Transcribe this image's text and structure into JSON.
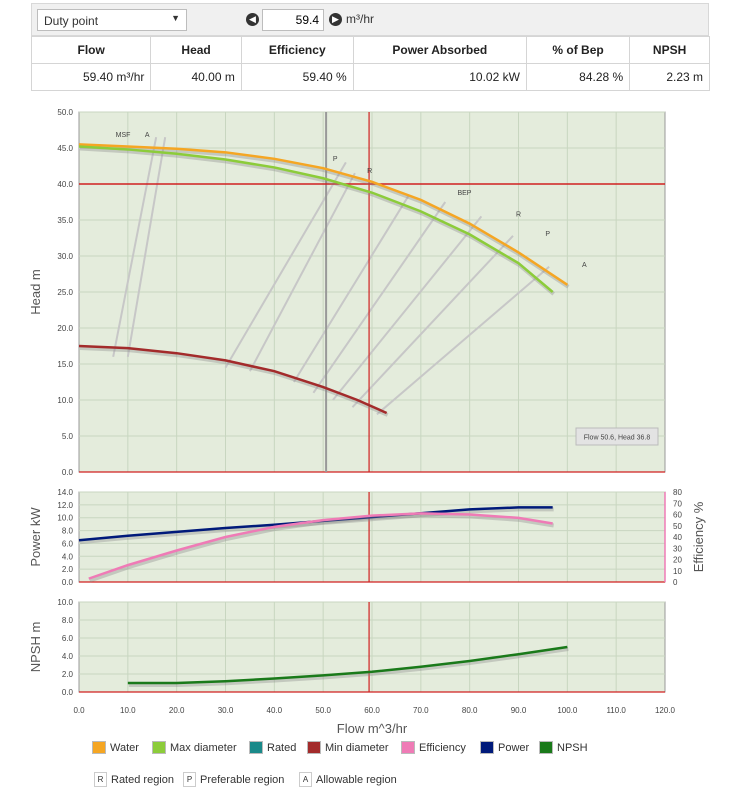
{
  "toolbar": {
    "mode_select": "Duty point",
    "flow_value": "59.4",
    "flow_unit": "m³/hr"
  },
  "summary": {
    "headers": [
      "Flow",
      "Head",
      "Efficiency",
      "Power Absorbed",
      "% of Bep",
      "NPSH"
    ],
    "values": [
      "59.40 m³/hr",
      "40.00 m",
      "59.40 %",
      "10.02 kW",
      "84.28 %",
      "2.23 m"
    ]
  },
  "tooltip": "Flow 50.6, Head 36.8",
  "colors": {
    "water": "#f5a623",
    "max_diameter": "#8ccc3a",
    "rated": "#1a8a8a",
    "min_diameter": "#a32b2b",
    "efficiency": "#ef7bb6",
    "power": "#001a7a",
    "npsh": "#1a7a1a",
    "duty_line": "#d02020",
    "plot_bg": "#e4ecdc",
    "grid": "#c8d6c0"
  },
  "chart_data": [
    {
      "type": "line",
      "ylabel": "Head m",
      "xlim": [
        0,
        120
      ],
      "ylim": [
        0,
        50
      ],
      "yticks": [
        "0.0",
        "5.0",
        "10.0",
        "15.0",
        "20.0",
        "25.0",
        "30.0",
        "35.0",
        "40.0",
        "45.0",
        "50.0"
      ],
      "series": [
        {
          "key": "water",
          "x": [
            0,
            10,
            20,
            30,
            40,
            50,
            60,
            70,
            80,
            90,
            100
          ],
          "values": [
            45.5,
            45.2,
            44.9,
            44.4,
            43.5,
            42.2,
            40.3,
            37.8,
            34.5,
            30.5,
            26.0
          ]
        },
        {
          "key": "max_diameter",
          "x": [
            0,
            10,
            20,
            30,
            40,
            50,
            60,
            70,
            80,
            90,
            97
          ],
          "values": [
            45.2,
            44.8,
            44.2,
            43.4,
            42.3,
            40.8,
            38.8,
            36.2,
            33.0,
            29.0,
            25.0
          ]
        },
        {
          "key": "min_diameter",
          "x": [
            0,
            10,
            20,
            30,
            40,
            50,
            57,
            63
          ],
          "values": [
            17.5,
            17.2,
            16.5,
            15.5,
            14.0,
            11.8,
            10.0,
            8.2
          ]
        }
      ],
      "duty_point": {
        "flow": 59.4,
        "head": 40.0
      },
      "gray_vertical": 50.6,
      "region_labels": [
        {
          "text": "MSF",
          "x": 7.5,
          "y": 46.5
        },
        {
          "text": "A",
          "x": 13.5,
          "y": 46.5
        },
        {
          "text": "P",
          "x": 52,
          "y": 43.2
        },
        {
          "text": "R",
          "x": 59,
          "y": 41.5
        },
        {
          "text": "BEP",
          "x": 77.5,
          "y": 38.5
        },
        {
          "text": "R",
          "x": 89.5,
          "y": 35.5
        },
        {
          "text": "P",
          "x": 95.5,
          "y": 32.8
        },
        {
          "text": "A",
          "x": 103,
          "y": 28.5
        }
      ]
    },
    {
      "type": "line",
      "ylabel": "Power kW",
      "y2label": "Efficiency %",
      "xlim": [
        0,
        120
      ],
      "ylim": [
        0,
        14
      ],
      "y2lim": [
        0,
        80
      ],
      "yticks": [
        "0.0",
        "2.0",
        "4.0",
        "6.0",
        "8.0",
        "10.0",
        "12.0",
        "14.0"
      ],
      "y2ticks": [
        "0",
        "10",
        "20",
        "30",
        "40",
        "50",
        "60",
        "70",
        "80"
      ],
      "series": [
        {
          "key": "power",
          "axis": "left",
          "x": [
            0,
            10,
            20,
            30,
            40,
            50,
            60,
            70,
            80,
            90,
            97
          ],
          "values": [
            6.5,
            7.2,
            7.8,
            8.4,
            8.9,
            9.5,
            10.1,
            10.7,
            11.3,
            11.6,
            11.6
          ]
        },
        {
          "key": "efficiency",
          "axis": "right",
          "x": [
            2,
            10,
            20,
            30,
            40,
            50,
            60,
            70,
            80,
            90,
            97
          ],
          "values": [
            3,
            15,
            28,
            40,
            49,
            55,
            59,
            61,
            60,
            57,
            52
          ]
        }
      ],
      "duty_point": {
        "flow": 59.4
      }
    },
    {
      "type": "line",
      "ylabel": "NPSH m",
      "xlabel": "Flow m^3/hr",
      "xlim": [
        0,
        120
      ],
      "ylim": [
        0,
        10
      ],
      "yticks": [
        "0.0",
        "2.0",
        "4.0",
        "6.0",
        "8.0",
        "10.0"
      ],
      "xticks": [
        "0.0",
        "10.0",
        "20.0",
        "30.0",
        "40.0",
        "50.0",
        "60.0",
        "70.0",
        "80.0",
        "90.0",
        "100.0",
        "110.0",
        "120.0"
      ],
      "series": [
        {
          "key": "npsh",
          "x": [
            10,
            20,
            30,
            40,
            50,
            60,
            70,
            80,
            90,
            100
          ],
          "values": [
            1.0,
            1.0,
            1.2,
            1.5,
            1.85,
            2.25,
            2.8,
            3.45,
            4.2,
            5.0
          ]
        }
      ],
      "duty_point": {
        "flow": 59.4
      }
    }
  ],
  "legend": [
    {
      "key": "water",
      "label": "Water"
    },
    {
      "key": "max_diameter",
      "label": "Max diameter"
    },
    {
      "key": "rated",
      "label": "Rated"
    },
    {
      "key": "min_diameter",
      "label": "Min diameter"
    },
    {
      "key": "efficiency",
      "label": "Efficiency"
    },
    {
      "key": "power",
      "label": "Power"
    },
    {
      "key": "npsh",
      "label": "NPSH"
    }
  ],
  "regions": [
    {
      "box": "R",
      "label": "Rated region"
    },
    {
      "box": "P",
      "label": "Preferable region"
    },
    {
      "box": "A",
      "label": "Allowable region"
    }
  ]
}
